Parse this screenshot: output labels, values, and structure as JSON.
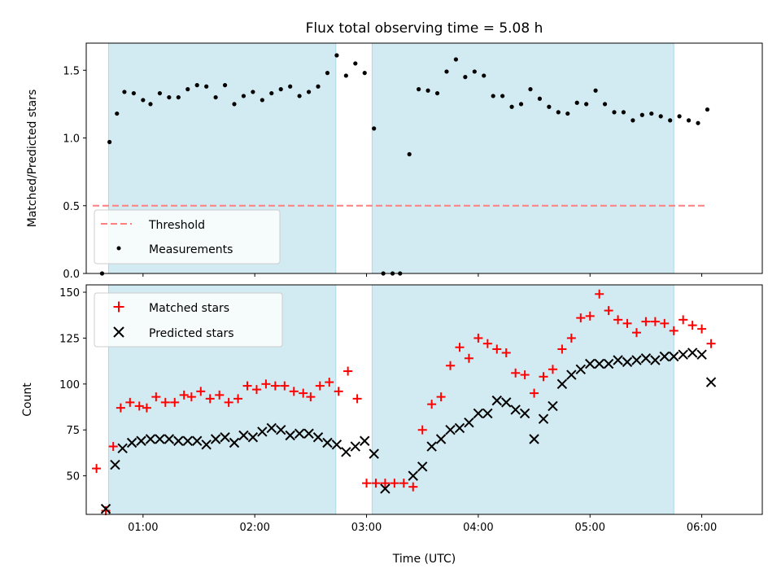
{
  "chart_data": {
    "type": "scatter",
    "title": "Flux total observing time = 5.08 h",
    "xlabel": "Time (UTC)",
    "x_ticks": [
      "01:00",
      "02:00",
      "03:00",
      "04:00",
      "05:00",
      "06:00"
    ],
    "x_tick_values": [
      60,
      120,
      180,
      240,
      300,
      360
    ],
    "xlim": [
      29.5,
      392.5
    ],
    "observing_windows": [
      [
        41.5,
        163.5
      ],
      [
        183,
        345
      ]
    ],
    "colors": {
      "window_fill": "#add8e6",
      "threshold": "#ff7f7f",
      "measurements": "#000000",
      "matched": "#ff0000",
      "predicted": "#000000"
    },
    "panels": [
      {
        "ylabel": "Matched/Predicted stars",
        "ylim": [
          0,
          1.7
        ],
        "y_ticks": [
          0.0,
          0.5,
          1.0,
          1.5
        ],
        "y_tick_labels": [
          "0.0",
          "0.5",
          "1.0",
          "1.5"
        ],
        "legend": {
          "position": "lower-left",
          "entries": [
            "Threshold",
            "Measurements"
          ]
        },
        "threshold": {
          "name": "Threshold",
          "value": 0.5,
          "x_range": [
            33,
            363
          ]
        },
        "series": [
          {
            "name": "Measurements",
            "marker": "dot",
            "points": [
              [
                38,
                0.0
              ],
              [
                42,
                0.97
              ],
              [
                46,
                1.18
              ],
              [
                50,
                1.34
              ],
              [
                55,
                1.33
              ],
              [
                60,
                1.28
              ],
              [
                64,
                1.25
              ],
              [
                69,
                1.33
              ],
              [
                74,
                1.3
              ],
              [
                79,
                1.3
              ],
              [
                84,
                1.36
              ],
              [
                89,
                1.39
              ],
              [
                94,
                1.38
              ],
              [
                99,
                1.3
              ],
              [
                104,
                1.39
              ],
              [
                109,
                1.25
              ],
              [
                114,
                1.31
              ],
              [
                119,
                1.34
              ],
              [
                124,
                1.28
              ],
              [
                129,
                1.33
              ],
              [
                134,
                1.36
              ],
              [
                139,
                1.38
              ],
              [
                144,
                1.31
              ],
              [
                149,
                1.34
              ],
              [
                154,
                1.38
              ],
              [
                159,
                1.48
              ],
              [
                164,
                1.61
              ],
              [
                169,
                1.46
              ],
              [
                174,
                1.55
              ],
              [
                179,
                1.48
              ],
              [
                184,
                1.07
              ],
              [
                189,
                0.0
              ],
              [
                194,
                0.0
              ],
              [
                198,
                0.0
              ],
              [
                203,
                0.88
              ],
              [
                208,
                1.36
              ],
              [
                213,
                1.35
              ],
              [
                218,
                1.33
              ],
              [
                223,
                1.49
              ],
              [
                228,
                1.58
              ],
              [
                233,
                1.45
              ],
              [
                238,
                1.49
              ],
              [
                243,
                1.46
              ],
              [
                248,
                1.31
              ],
              [
                253,
                1.31
              ],
              [
                258,
                1.23
              ],
              [
                263,
                1.25
              ],
              [
                268,
                1.36
              ],
              [
                273,
                1.29
              ],
              [
                278,
                1.23
              ],
              [
                283,
                1.19
              ],
              [
                288,
                1.18
              ],
              [
                293,
                1.26
              ],
              [
                298,
                1.25
              ],
              [
                303,
                1.35
              ],
              [
                308,
                1.25
              ],
              [
                313,
                1.19
              ],
              [
                318,
                1.19
              ],
              [
                323,
                1.13
              ],
              [
                328,
                1.17
              ],
              [
                333,
                1.18
              ],
              [
                338,
                1.16
              ],
              [
                343,
                1.13
              ],
              [
                348,
                1.16
              ],
              [
                353,
                1.13
              ],
              [
                358,
                1.11
              ],
              [
                363,
                1.21
              ]
            ]
          }
        ]
      },
      {
        "ylabel": "Count",
        "ylim": [
          29,
          154
        ],
        "y_ticks": [
          50,
          75,
          100,
          125,
          150
        ],
        "y_tick_labels": [
          "50",
          "75",
          "100",
          "125",
          "150"
        ],
        "legend": {
          "position": "upper-left",
          "entries": [
            "Matched stars",
            "Predicted stars"
          ]
        },
        "series": [
          {
            "name": "Matched stars",
            "marker": "plus",
            "points": [
              [
                35,
                54
              ],
              [
                40,
                31
              ],
              [
                44,
                66
              ],
              [
                48,
                87
              ],
              [
                53,
                90
              ],
              [
                58,
                88
              ],
              [
                62,
                87
              ],
              [
                67,
                93
              ],
              [
                72,
                90
              ],
              [
                77,
                90
              ],
              [
                82,
                94
              ],
              [
                86,
                93
              ],
              [
                91,
                96
              ],
              [
                96,
                92
              ],
              [
                101,
                94
              ],
              [
                106,
                90
              ],
              [
                111,
                92
              ],
              [
                116,
                99
              ],
              [
                121,
                97
              ],
              [
                126,
                100
              ],
              [
                131,
                99
              ],
              [
                136,
                99
              ],
              [
                141,
                96
              ],
              [
                146,
                95
              ],
              [
                150,
                93
              ],
              [
                155,
                99
              ],
              [
                160,
                101
              ],
              [
                165,
                96
              ],
              [
                170,
                107
              ],
              [
                175,
                92
              ],
              [
                180,
                46
              ],
              [
                185,
                46
              ],
              [
                190,
                46
              ],
              [
                195,
                46
              ],
              [
                200,
                46
              ],
              [
                205,
                44
              ],
              [
                210,
                75
              ],
              [
                215,
                89
              ],
              [
                220,
                93
              ],
              [
                225,
                110
              ],
              [
                230,
                120
              ],
              [
                235,
                114
              ],
              [
                240,
                125
              ],
              [
                245,
                122
              ],
              [
                250,
                119
              ],
              [
                255,
                117
              ],
              [
                260,
                106
              ],
              [
                265,
                105
              ],
              [
                270,
                95
              ],
              [
                275,
                104
              ],
              [
                280,
                108
              ],
              [
                285,
                119
              ],
              [
                290,
                125
              ],
              [
                295,
                136
              ],
              [
                300,
                137
              ],
              [
                305,
                149
              ],
              [
                310,
                140
              ],
              [
                315,
                135
              ],
              [
                320,
                133
              ],
              [
                325,
                128
              ],
              [
                330,
                134
              ],
              [
                335,
                134
              ],
              [
                340,
                133
              ],
              [
                345,
                129
              ],
              [
                350,
                135
              ],
              [
                355,
                132
              ],
              [
                360,
                130
              ],
              [
                365,
                122
              ]
            ]
          },
          {
            "name": "Predicted stars",
            "marker": "x",
            "points": [
              [
                40,
                32
              ],
              [
                45,
                56
              ],
              [
                49,
                65
              ],
              [
                54,
                68
              ],
              [
                59,
                69
              ],
              [
                64,
                70
              ],
              [
                69,
                70
              ],
              [
                74,
                70
              ],
              [
                79,
                69
              ],
              [
                84,
                69
              ],
              [
                89,
                69
              ],
              [
                94,
                67
              ],
              [
                99,
                70
              ],
              [
                104,
                71
              ],
              [
                109,
                68
              ],
              [
                114,
                72
              ],
              [
                119,
                71
              ],
              [
                124,
                74
              ],
              [
                129,
                76
              ],
              [
                134,
                75
              ],
              [
                139,
                72
              ],
              [
                144,
                73
              ],
              [
                149,
                73
              ],
              [
                154,
                71
              ],
              [
                159,
                68
              ],
              [
                164,
                67
              ],
              [
                169,
                63
              ],
              [
                174,
                66
              ],
              [
                179,
                69
              ],
              [
                184,
                62
              ],
              [
                190,
                43
              ],
              [
                205,
                50
              ],
              [
                210,
                55
              ],
              [
                215,
                66
              ],
              [
                220,
                70
              ],
              [
                225,
                75
              ],
              [
                230,
                76
              ],
              [
                235,
                79
              ],
              [
                240,
                84
              ],
              [
                245,
                84
              ],
              [
                250,
                91
              ],
              [
                255,
                90
              ],
              [
                260,
                86
              ],
              [
                265,
                84
              ],
              [
                270,
                70
              ],
              [
                275,
                81
              ],
              [
                280,
                88
              ],
              [
                285,
                100
              ],
              [
                290,
                105
              ],
              [
                295,
                108
              ],
              [
                300,
                111
              ],
              [
                305,
                111
              ],
              [
                310,
                111
              ],
              [
                315,
                113
              ],
              [
                320,
                112
              ],
              [
                325,
                113
              ],
              [
                330,
                114
              ],
              [
                335,
                113
              ],
              [
                340,
                115
              ],
              [
                345,
                115
              ],
              [
                350,
                116
              ],
              [
                355,
                117
              ],
              [
                360,
                116
              ],
              [
                365,
                101
              ]
            ]
          }
        ]
      }
    ]
  }
}
